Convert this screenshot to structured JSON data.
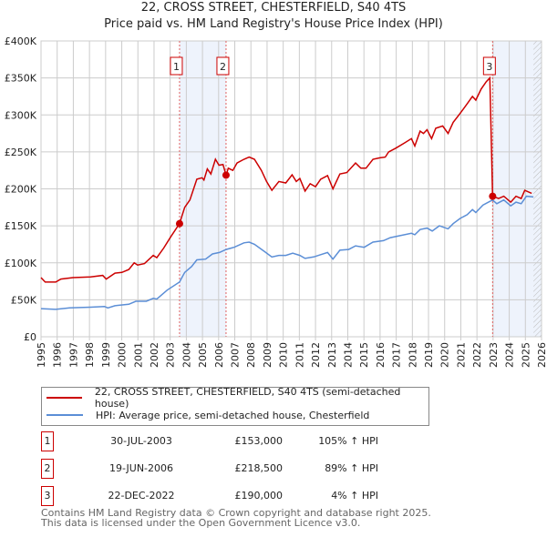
{
  "title_line1": "22, CROSS STREET, CHESTERFIELD, S40 4TS",
  "title_line2": "Price paid vs. HM Land Registry's House Price Index (HPI)",
  "colors": {
    "price": "#cc0000",
    "hpi": "#5b8ed6",
    "shade": "#eef3fc",
    "grid": "#cccccc"
  },
  "chart_data": {
    "type": "line",
    "title": "Price paid vs. HM Land Registry's House Price Index (HPI)",
    "xlim": [
      1995,
      2026
    ],
    "ylim": [
      0,
      400000
    ],
    "x_ticks": [
      "1995",
      "1996",
      "1997",
      "1998",
      "1999",
      "2000",
      "2001",
      "2002",
      "2003",
      "2004",
      "2005",
      "2006",
      "2007",
      "2008",
      "2009",
      "2010",
      "2011",
      "2012",
      "2013",
      "2014",
      "2015",
      "2016",
      "2017",
      "2018",
      "2019",
      "2020",
      "2021",
      "2022",
      "2023",
      "2024",
      "2025",
      "2026"
    ],
    "y_ticks": [
      {
        "v": 0,
        "label": "£0"
      },
      {
        "v": 50000,
        "label": "£50K"
      },
      {
        "v": 100000,
        "label": "£100K"
      },
      {
        "v": 150000,
        "label": "£150K"
      },
      {
        "v": 200000,
        "label": "£200K"
      },
      {
        "v": 250000,
        "label": "£250K"
      },
      {
        "v": 300000,
        "label": "£300K"
      },
      {
        "v": 350000,
        "label": "£350K"
      },
      {
        "v": 400000,
        "label": "£400K"
      }
    ],
    "grid": true,
    "shaded_ranges": [
      [
        2003.58,
        2006.46
      ],
      [
        2022.97,
        2026
      ]
    ],
    "hatched_from": 2025.5,
    "series": [
      {
        "name": "22, CROSS STREET, CHESTERFIELD, S40 4TS (semi-detached house)",
        "color": "#cc0000",
        "x": [
          1995.0,
          1995.26,
          1995.91,
          1996.23,
          1996.99,
          1998.07,
          1998.82,
          1999.04,
          1999.58,
          2000.01,
          2000.44,
          2000.77,
          2000.98,
          2001.41,
          2001.95,
          2002.17,
          2002.6,
          2003.03,
          2003.58,
          2003.9,
          2004.22,
          2004.65,
          2004.98,
          2005.09,
          2005.3,
          2005.52,
          2005.8,
          2006.02,
          2006.27,
          2006.46,
          2006.6,
          2006.88,
          2007.14,
          2007.57,
          2007.89,
          2008.22,
          2008.65,
          2008.97,
          2009.3,
          2009.73,
          2010.16,
          2010.55,
          2010.81,
          2011.03,
          2011.35,
          2011.67,
          2012.0,
          2012.32,
          2012.75,
          2013.08,
          2013.51,
          2013.94,
          2014.48,
          2014.81,
          2015.13,
          2015.56,
          2015.99,
          2016.32,
          2016.53,
          2016.97,
          2017.51,
          2017.94,
          2018.15,
          2018.48,
          2018.69,
          2018.91,
          2019.19,
          2019.45,
          2019.88,
          2020.21,
          2020.53,
          2020.96,
          2021.39,
          2021.72,
          2021.93,
          2022.26,
          2022.58,
          2022.8,
          2022.97,
          2023.34,
          2023.66,
          2024.09,
          2024.42,
          2024.74,
          2024.96,
          2025.39
        ],
        "y": [
          80000,
          74000,
          74000,
          78000,
          80000,
          81000,
          83000,
          78000,
          86000,
          87000,
          91000,
          100000,
          97000,
          99000,
          110000,
          107000,
          120000,
          135000,
          153000,
          175000,
          185000,
          213000,
          215000,
          212000,
          227000,
          220000,
          240000,
          232000,
          233000,
          218500,
          228000,
          225000,
          235000,
          240000,
          243000,
          240000,
          225000,
          210000,
          198000,
          210000,
          208000,
          219000,
          210000,
          214000,
          197000,
          207000,
          203000,
          213000,
          218000,
          200000,
          220000,
          222000,
          235000,
          228000,
          228000,
          240000,
          242000,
          243000,
          250000,
          255000,
          262000,
          268000,
          258000,
          278000,
          275000,
          280000,
          268000,
          282000,
          285000,
          275000,
          290000,
          302000,
          315000,
          325000,
          320000,
          335000,
          345000,
          350000,
          190000,
          187000,
          190000,
          182000,
          190000,
          187000,
          198000,
          194000
        ]
      },
      {
        "name": "HPI: Average price, semi-detached house, Chesterfield",
        "color": "#5b8ed6",
        "x": [
          1995.0,
          1995.91,
          1996.77,
          1998.07,
          1998.93,
          1999.14,
          1999.58,
          2000.44,
          2000.87,
          2001.52,
          2001.95,
          2002.17,
          2002.81,
          2003.58,
          2003.9,
          2004.33,
          2004.65,
          2005.19,
          2005.62,
          2006.05,
          2006.46,
          2006.96,
          2007.57,
          2007.89,
          2008.22,
          2008.86,
          2009.3,
          2009.73,
          2010.16,
          2010.59,
          2011.03,
          2011.35,
          2011.89,
          2012.32,
          2012.75,
          2013.08,
          2013.51,
          2014.05,
          2014.48,
          2015.02,
          2015.56,
          2016.21,
          2016.64,
          2017.07,
          2017.94,
          2018.15,
          2018.48,
          2018.91,
          2019.23,
          2019.67,
          2020.21,
          2020.53,
          2020.96,
          2021.39,
          2021.72,
          2021.93,
          2022.37,
          2022.97,
          2023.23,
          2023.66,
          2024.09,
          2024.42,
          2024.74,
          2025.06,
          2025.5
        ],
        "y": [
          38000,
          37000,
          39000,
          40000,
          41000,
          39000,
          42000,
          44000,
          48000,
          48000,
          52000,
          51000,
          63000,
          74000,
          87000,
          95000,
          104000,
          105000,
          112000,
          114000,
          118000,
          121000,
          127000,
          128000,
          125000,
          115000,
          108000,
          110000,
          110000,
          113000,
          110000,
          106000,
          108000,
          111000,
          114000,
          105000,
          117000,
          118000,
          123000,
          121000,
          128000,
          130000,
          134000,
          136000,
          140000,
          138000,
          145000,
          147000,
          143000,
          150000,
          146000,
          153000,
          160000,
          165000,
          172000,
          168000,
          178000,
          185000,
          180000,
          185000,
          177000,
          182000,
          180000,
          190000,
          189000
        ]
      }
    ],
    "sales": [
      {
        "label": "1",
        "x": 2003.58,
        "y": 153000
      },
      {
        "label": "2",
        "x": 2006.46,
        "y": 218500
      },
      {
        "label": "3",
        "x": 2022.97,
        "y": 190000
      }
    ]
  },
  "legend": {
    "price_label": "22, CROSS STREET, CHESTERFIELD, S40 4TS (semi-detached house)",
    "hpi_label": "HPI: Average price, semi-detached house, Chesterfield"
  },
  "transactions": [
    {
      "num": "1",
      "date": "30-JUL-2003",
      "price": "£153,000",
      "pct": "105% ↑ HPI"
    },
    {
      "num": "2",
      "date": "19-JUN-2006",
      "price": "£218,500",
      "pct": "89% ↑ HPI"
    },
    {
      "num": "3",
      "date": "22-DEC-2022",
      "price": "£190,000",
      "pct": "4% ↑ HPI"
    }
  ],
  "footer": {
    "line1": "Contains HM Land Registry data © Crown copyright and database right 2025.",
    "line2": "This data is licensed under the Open Government Licence v3.0."
  }
}
